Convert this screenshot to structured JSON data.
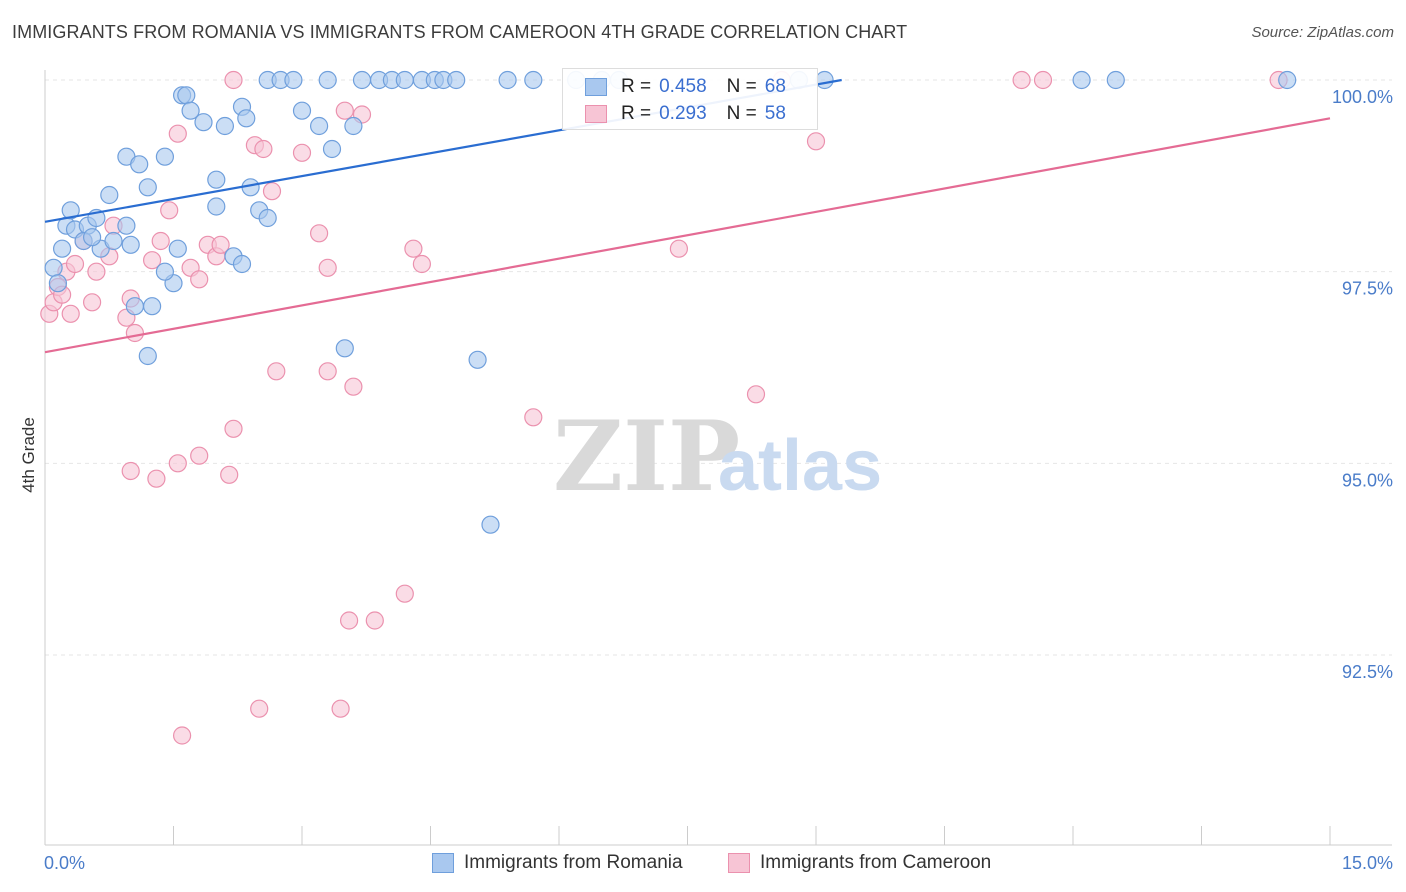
{
  "header": {
    "title": "IMMIGRANTS FROM ROMANIA VS IMMIGRANTS FROM CAMEROON 4TH GRADE CORRELATION CHART",
    "source": "Source: ZipAtlas.com"
  },
  "watermark": {
    "zip": "ZIP",
    "atlas": "atlas"
  },
  "legend": {
    "r_label": "R =",
    "n_label": "N =",
    "series": [
      {
        "r": "0.458",
        "n": "68"
      },
      {
        "r": "0.293",
        "n": "58"
      }
    ]
  },
  "colors": {
    "romania_fill": "#a9c8ef",
    "romania_stroke": "#6f9fdc",
    "romania_line": "#2a6dd1",
    "cameroon_fill": "#f7c5d5",
    "cameroon_stroke": "#eb91ae",
    "cameroon_line": "#e46b94",
    "grid": "#e6e6e6"
  },
  "chart_data": {
    "type": "scatter",
    "title": "IMMIGRANTS FROM ROMANIA VS IMMIGRANTS FROM CAMEROON 4TH GRADE CORRELATION CHART",
    "xlabel": "",
    "ylabel": "4th Grade",
    "xlim": [
      0,
      15
    ],
    "ylim": [
      90.0,
      100.4
    ],
    "x_tick_labels": [
      "0.0%",
      "15.0%"
    ],
    "y_ticks": [
      92.5,
      95.0,
      97.5,
      100.0
    ],
    "y_tick_labels": [
      "92.5%",
      "95.0%",
      "97.5%",
      "100.0%"
    ],
    "grid": true,
    "legend_position": "top-center",
    "series": [
      {
        "name": "Immigrants from Romania",
        "trend": {
          "x": [
            0,
            9.3
          ],
          "y": [
            98.15,
            100.0
          ]
        },
        "points": [
          [
            0.1,
            97.55
          ],
          [
            0.15,
            97.35
          ],
          [
            0.2,
            97.8
          ],
          [
            0.25,
            98.1
          ],
          [
            0.3,
            98.3
          ],
          [
            0.35,
            98.05
          ],
          [
            0.5,
            98.1
          ],
          [
            0.45,
            97.9
          ],
          [
            0.6,
            98.2
          ],
          [
            0.65,
            97.8
          ],
          [
            0.75,
            98.5
          ],
          [
            0.8,
            97.9
          ],
          [
            0.95,
            99.0
          ],
          [
            1.1,
            98.9
          ],
          [
            1.2,
            98.6
          ],
          [
            1.4,
            99.0
          ],
          [
            1.55,
            97.8
          ],
          [
            1.5,
            97.35
          ],
          [
            1.25,
            97.05
          ],
          [
            1.05,
            97.05
          ],
          [
            1.2,
            96.4
          ],
          [
            1.6,
            99.8
          ],
          [
            1.65,
            99.8
          ],
          [
            1.7,
            99.6
          ],
          [
            1.85,
            99.45
          ],
          [
            2.0,
            98.7
          ],
          [
            2.0,
            98.35
          ],
          [
            2.1,
            99.4
          ],
          [
            2.2,
            97.7
          ],
          [
            2.3,
            99.65
          ],
          [
            2.35,
            99.5
          ],
          [
            2.3,
            97.6
          ],
          [
            2.4,
            98.6
          ],
          [
            2.5,
            98.3
          ],
          [
            2.6,
            98.2
          ],
          [
            2.6,
            100.0
          ],
          [
            2.75,
            100.0
          ],
          [
            2.9,
            100.0
          ],
          [
            3.0,
            99.6
          ],
          [
            3.3,
            100.0
          ],
          [
            3.2,
            99.4
          ],
          [
            3.35,
            99.1
          ],
          [
            3.5,
            96.5
          ],
          [
            3.6,
            99.4
          ],
          [
            3.7,
            100.0
          ],
          [
            3.9,
            100.0
          ],
          [
            4.05,
            100.0
          ],
          [
            4.2,
            100.0
          ],
          [
            4.4,
            100.0
          ],
          [
            4.55,
            100.0
          ],
          [
            4.65,
            100.0
          ],
          [
            4.8,
            100.0
          ],
          [
            5.05,
            96.35
          ],
          [
            5.2,
            94.2
          ],
          [
            5.4,
            100.0
          ],
          [
            5.7,
            100.0
          ],
          [
            6.2,
            100.0
          ],
          [
            6.5,
            100.0
          ],
          [
            6.7,
            100.0
          ],
          [
            8.8,
            100.0
          ],
          [
            9.1,
            100.0
          ],
          [
            12.1,
            100.0
          ],
          [
            12.5,
            100.0
          ],
          [
            14.5,
            100.0
          ],
          [
            1.4,
            97.5
          ],
          [
            0.55,
            97.95
          ],
          [
            1.0,
            97.85
          ],
          [
            0.95,
            98.1
          ]
        ]
      },
      {
        "name": "Immigrants from Cameroon",
        "trend": {
          "x": [
            0,
            15
          ],
          "y": [
            96.45,
            99.5
          ]
        },
        "points": [
          [
            0.05,
            96.95
          ],
          [
            0.1,
            97.1
          ],
          [
            0.15,
            97.3
          ],
          [
            0.25,
            97.5
          ],
          [
            0.35,
            97.6
          ],
          [
            0.45,
            97.9
          ],
          [
            0.55,
            97.1
          ],
          [
            0.6,
            97.5
          ],
          [
            0.75,
            97.7
          ],
          [
            0.8,
            98.1
          ],
          [
            0.95,
            96.9
          ],
          [
            1.0,
            97.15
          ],
          [
            1.05,
            96.7
          ],
          [
            1.25,
            97.65
          ],
          [
            1.35,
            97.9
          ],
          [
            1.45,
            98.3
          ],
          [
            1.55,
            99.3
          ],
          [
            1.7,
            97.55
          ],
          [
            1.8,
            97.4
          ],
          [
            1.9,
            97.85
          ],
          [
            2.0,
            97.7
          ],
          [
            2.05,
            97.85
          ],
          [
            1.8,
            95.1
          ],
          [
            1.55,
            95.0
          ],
          [
            1.3,
            94.8
          ],
          [
            1.0,
            94.9
          ],
          [
            2.15,
            94.85
          ],
          [
            2.2,
            95.45
          ],
          [
            2.45,
            99.15
          ],
          [
            2.55,
            99.1
          ],
          [
            2.65,
            98.55
          ],
          [
            2.7,
            96.2
          ],
          [
            2.2,
            100.0
          ],
          [
            2.5,
            91.8
          ],
          [
            3.0,
            99.05
          ],
          [
            3.2,
            98.0
          ],
          [
            3.3,
            97.55
          ],
          [
            3.3,
            96.2
          ],
          [
            3.5,
            99.6
          ],
          [
            3.7,
            99.55
          ],
          [
            3.6,
            96.0
          ],
          [
            3.55,
            92.95
          ],
          [
            3.85,
            92.95
          ],
          [
            3.45,
            91.8
          ],
          [
            4.2,
            93.3
          ],
          [
            4.3,
            97.8
          ],
          [
            4.4,
            97.6
          ],
          [
            5.7,
            95.6
          ],
          [
            7.4,
            97.8
          ],
          [
            8.3,
            95.9
          ],
          [
            8.6,
            100.0
          ],
          [
            9.0,
            99.2
          ],
          [
            11.4,
            100.0
          ],
          [
            11.65,
            100.0
          ],
          [
            14.4,
            100.0
          ],
          [
            1.6,
            91.45
          ],
          [
            0.2,
            97.2
          ],
          [
            0.3,
            96.95
          ]
        ]
      }
    ]
  },
  "bottom_legend": [
    "Immigrants from Romania",
    "Immigrants from Cameroon"
  ]
}
